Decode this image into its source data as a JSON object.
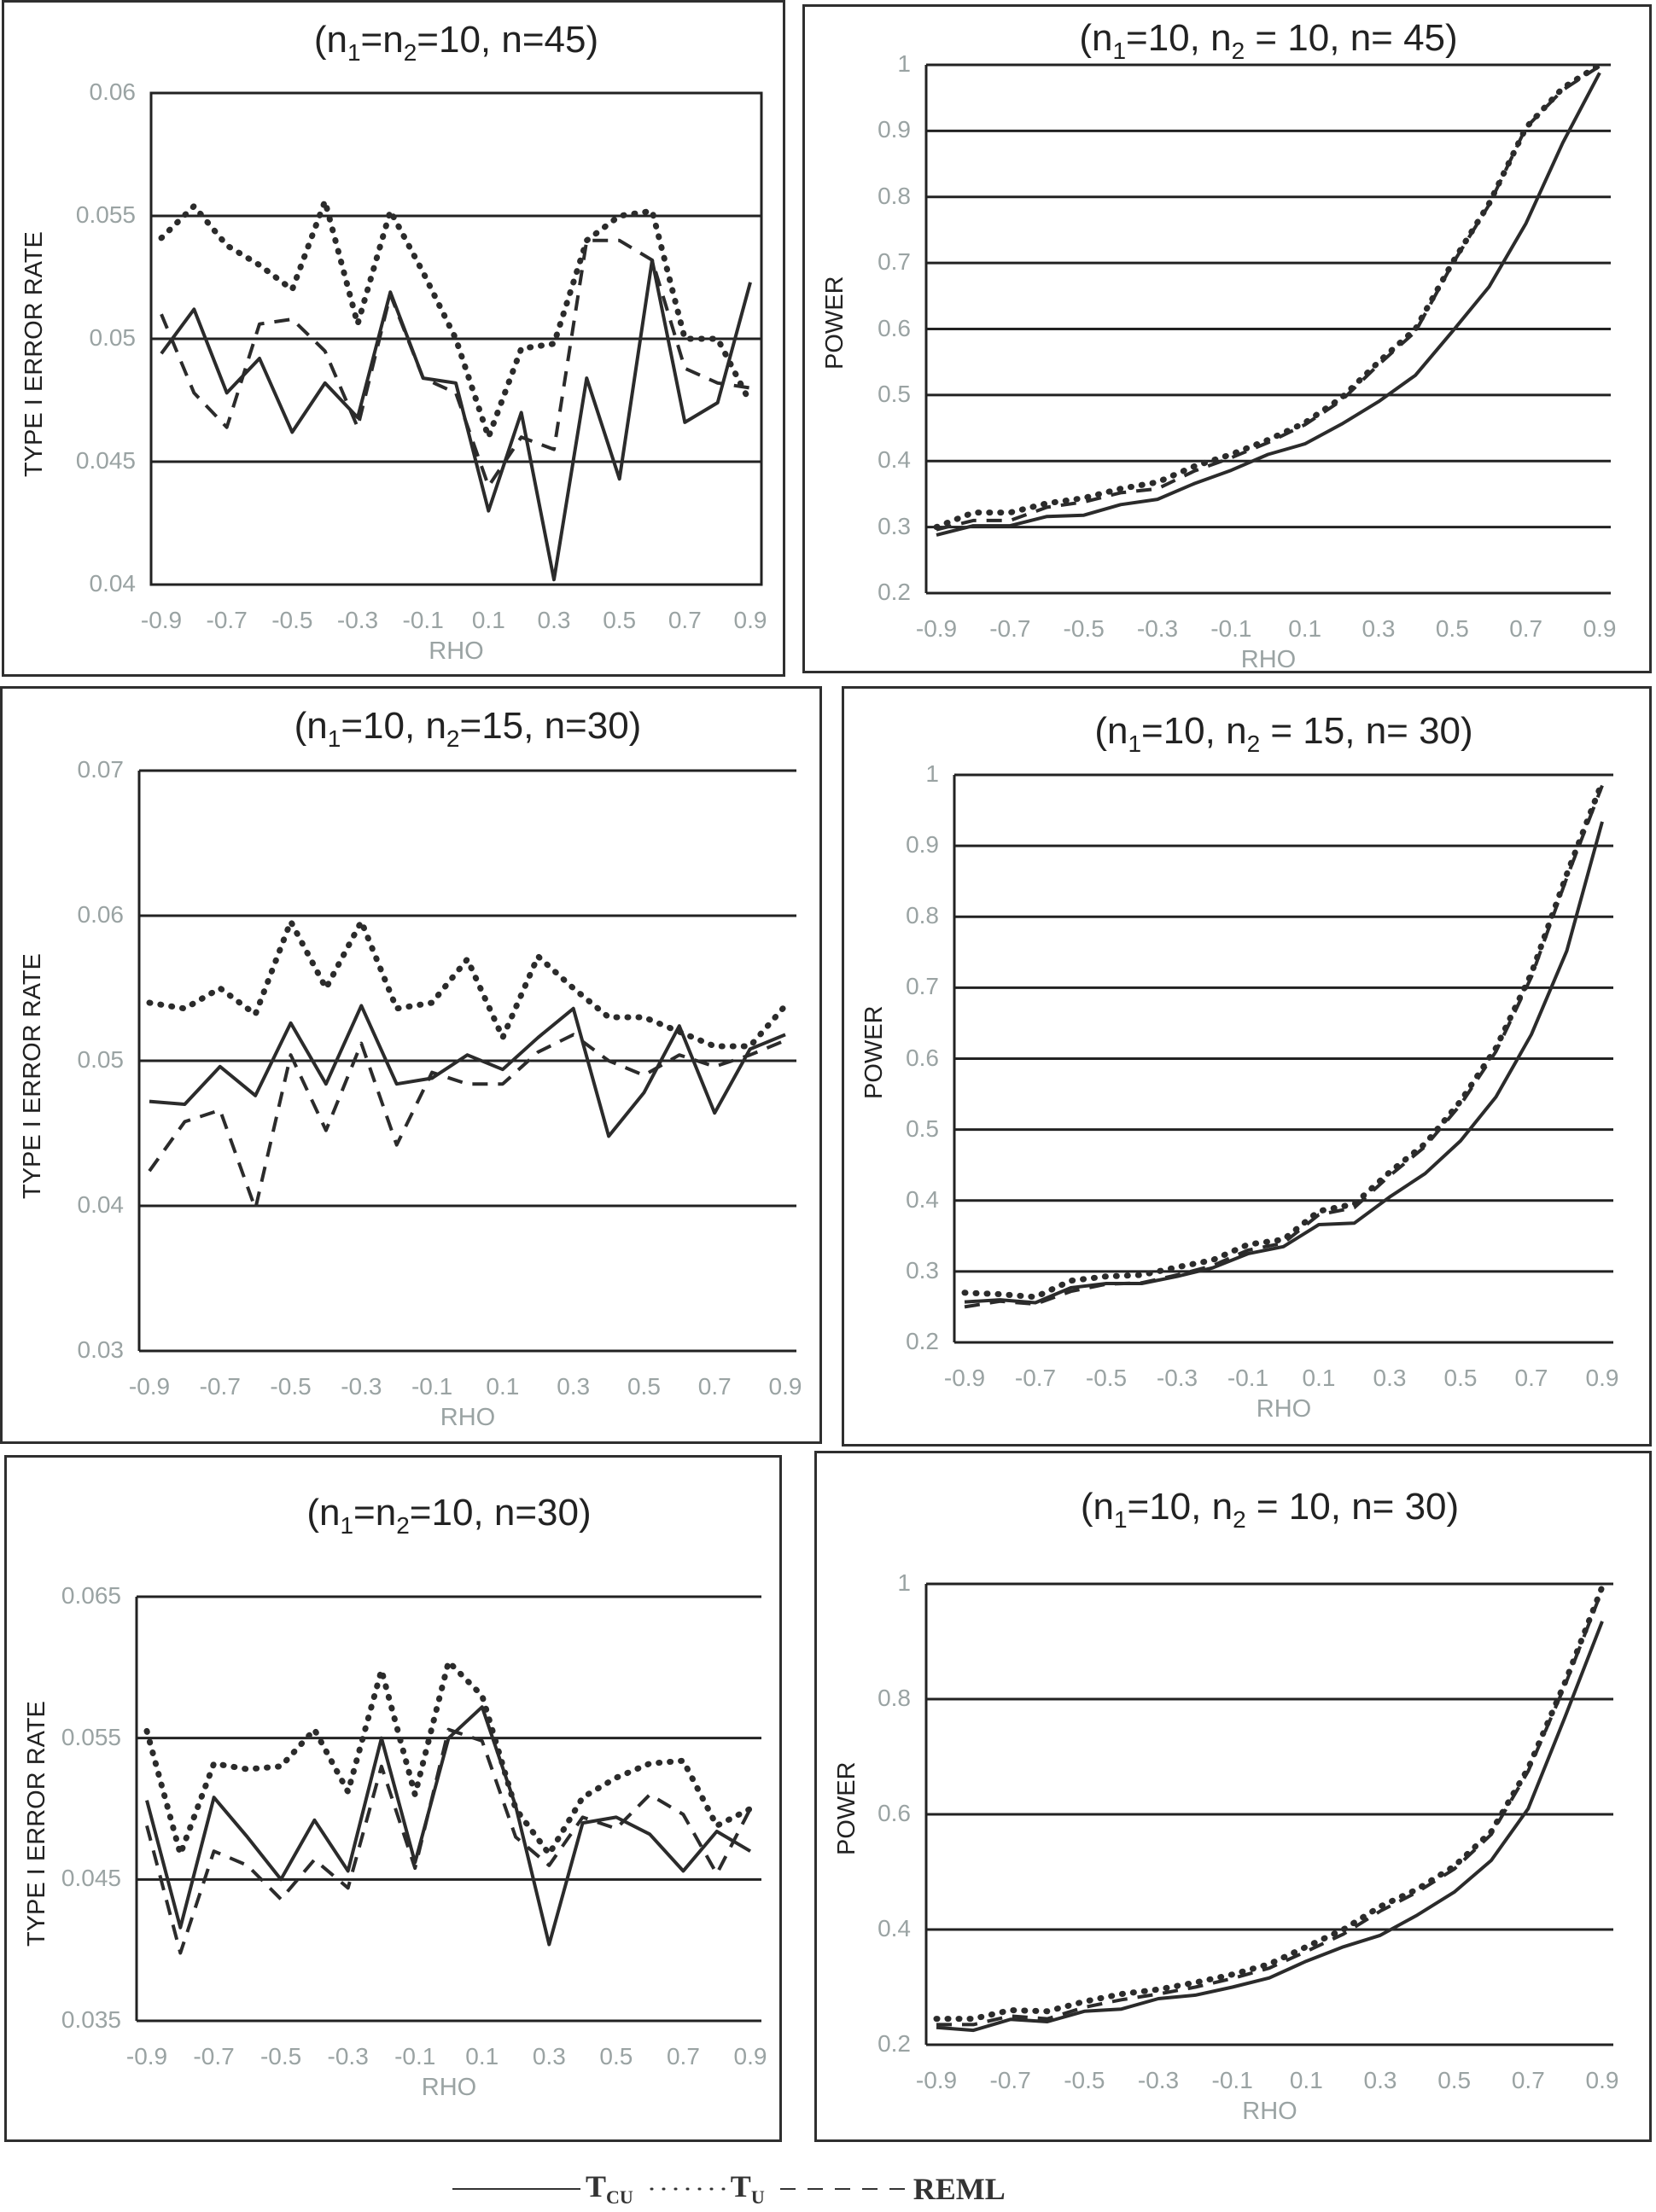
{
  "chart_data": [
    {
      "type": "line",
      "title": "(n1=n2=10, n=45)",
      "xlabel": "RHO",
      "ylabel": "TYPE I ERROR RATE",
      "x": [
        -0.9,
        -0.8,
        -0.7,
        -0.6,
        -0.5,
        -0.4,
        -0.3,
        -0.2,
        -0.1,
        0,
        0.1,
        0.2,
        0.3,
        0.4,
        0.5,
        0.6,
        0.7,
        0.8,
        0.9
      ],
      "xticks": [
        "-0.9",
        "-0.7",
        "-0.5",
        "-0.3",
        "-0.1",
        "0.1",
        "0.3",
        "0.5",
        "0.7",
        "0.9"
      ],
      "yticks": [
        "0.04",
        "0.045",
        "0.05",
        "0.055",
        "0.06"
      ],
      "ylim": [
        0.04,
        0.06
      ],
      "grid": true,
      "series": [
        {
          "name": "T_CU",
          "style": "solid",
          "values": [
            0.0494,
            0.0512,
            0.0478,
            0.0492,
            0.0462,
            0.0482,
            0.0468,
            0.0519,
            0.0484,
            0.0482,
            0.043,
            0.047,
            0.0402,
            0.0484,
            0.0443,
            0.0532,
            0.0466,
            0.0474,
            0.0523
          ]
        },
        {
          "name": "T_U",
          "style": "dotted",
          "values": [
            0.0541,
            0.0554,
            0.0538,
            0.053,
            0.052,
            0.0556,
            0.0506,
            0.0552,
            0.0527,
            0.05,
            0.046,
            0.0496,
            0.0498,
            0.054,
            0.055,
            0.0552,
            0.05,
            0.05,
            0.0474
          ]
        },
        {
          "name": "REML",
          "style": "dashed",
          "values": [
            0.051,
            0.0478,
            0.0464,
            0.0506,
            0.0508,
            0.0495,
            0.0464,
            0.0518,
            0.0484,
            0.0478,
            0.044,
            0.046,
            0.0455,
            0.054,
            0.054,
            0.0532,
            0.0488,
            0.0482,
            0.048
          ]
        }
      ]
    },
    {
      "type": "line",
      "title": "(n1=10, n2 = 10, n= 45)",
      "xlabel": "RHO",
      "ylabel": "POWER",
      "x": [
        -0.9,
        -0.8,
        -0.7,
        -0.6,
        -0.5,
        -0.4,
        -0.3,
        -0.2,
        -0.1,
        0,
        0.1,
        0.2,
        0.3,
        0.4,
        0.5,
        0.6,
        0.7,
        0.8,
        0.9
      ],
      "xticks": [
        "-0.9",
        "-0.7",
        "-0.5",
        "-0.3",
        "-0.1",
        "0.1",
        "0.3",
        "0.5",
        "0.7",
        "0.9"
      ],
      "yticks": [
        "0.2",
        "0.3",
        "0.4",
        "0.5",
        "0.6",
        "0.7",
        "0.8",
        "0.9",
        "1"
      ],
      "ylim": [
        0.2,
        1
      ],
      "grid": true,
      "series": [
        {
          "name": "T_CU",
          "style": "solid",
          "values": [
            0.288,
            0.302,
            0.302,
            0.316,
            0.318,
            0.334,
            0.342,
            0.366,
            0.386,
            0.41,
            0.426,
            0.456,
            0.49,
            0.53,
            0.596,
            0.664,
            0.76,
            0.882,
            0.988
          ]
        },
        {
          "name": "T_U",
          "style": "dotted",
          "values": [
            0.3,
            0.322,
            0.322,
            0.336,
            0.344,
            0.358,
            0.368,
            0.392,
            0.41,
            0.432,
            0.458,
            0.496,
            0.55,
            0.6,
            0.7,
            0.79,
            0.905,
            0.965,
            1.0
          ]
        },
        {
          "name": "REML",
          "style": "dashed",
          "values": [
            0.296,
            0.31,
            0.31,
            0.33,
            0.338,
            0.352,
            0.358,
            0.385,
            0.405,
            0.428,
            0.455,
            0.492,
            0.546,
            0.596,
            0.698,
            0.788,
            0.905,
            0.962,
            0.998
          ]
        }
      ]
    },
    {
      "type": "line",
      "title": "(n1=10, n2=15, n=30)",
      "xlabel": "RHO",
      "ylabel": "TYPE I ERROR RATE",
      "x": [
        -0.9,
        -0.8,
        -0.7,
        -0.6,
        -0.5,
        -0.4,
        -0.3,
        -0.2,
        -0.1,
        0,
        0.1,
        0.2,
        0.3,
        0.4,
        0.5,
        0.6,
        0.7,
        0.8,
        0.9
      ],
      "xticks": [
        "-0.9",
        "-0.7",
        "-0.5",
        "-0.3",
        "-0.1",
        "0.1",
        "0.3",
        "0.5",
        "0.7",
        "0.9"
      ],
      "yticks": [
        "0.03",
        "0.04",
        "0.05",
        "0.06",
        "0.07"
      ],
      "ylim": [
        0.03,
        0.07
      ],
      "grid": true,
      "series": [
        {
          "name": "T_CU",
          "style": "solid",
          "values": [
            0.0472,
            0.047,
            0.0496,
            0.0476,
            0.0526,
            0.0484,
            0.0538,
            0.0484,
            0.0488,
            0.0504,
            0.0494,
            0.0516,
            0.0536,
            0.0448,
            0.0478,
            0.0524,
            0.0464,
            0.0508,
            0.0518
          ]
        },
        {
          "name": "T_U",
          "style": "dotted",
          "values": [
            0.054,
            0.0536,
            0.055,
            0.0532,
            0.0596,
            0.055,
            0.0596,
            0.0536,
            0.054,
            0.057,
            0.0516,
            0.0572,
            0.055,
            0.053,
            0.053,
            0.052,
            0.051,
            0.051,
            0.0538
          ]
        },
        {
          "name": "REML",
          "style": "dashed",
          "values": [
            0.0424,
            0.0458,
            0.0466,
            0.0398,
            0.0504,
            0.0452,
            0.0512,
            0.0442,
            0.0492,
            0.0484,
            0.0484,
            0.0506,
            0.0518,
            0.05,
            0.049,
            0.0504,
            0.0496,
            0.0504,
            0.0514
          ]
        }
      ]
    },
    {
      "type": "line",
      "title": "(n1=10, n2 = 15, n= 30)",
      "xlabel": "RHO",
      "ylabel": "POWER",
      "x": [
        -0.9,
        -0.8,
        -0.7,
        -0.6,
        -0.5,
        -0.4,
        -0.3,
        -0.2,
        -0.1,
        0,
        0.1,
        0.2,
        0.3,
        0.4,
        0.5,
        0.6,
        0.7,
        0.8,
        0.9
      ],
      "xticks": [
        "-0.9",
        "-0.7",
        "-0.5",
        "-0.3",
        "-0.1",
        "0.1",
        "0.3",
        "0.5",
        "0.7",
        "0.9"
      ],
      "yticks": [
        "0.2",
        "0.3",
        "0.4",
        "0.5",
        "0.6",
        "0.7",
        "0.8",
        "0.9",
        "1"
      ],
      "ylim": [
        0.2,
        1
      ],
      "grid": true,
      "series": [
        {
          "name": "T_CU",
          "style": "solid",
          "values": [
            0.257,
            0.26,
            0.256,
            0.277,
            0.283,
            0.283,
            0.293,
            0.305,
            0.325,
            0.335,
            0.366,
            0.368,
            0.405,
            0.438,
            0.484,
            0.546,
            0.634,
            0.752,
            0.934
          ]
        },
        {
          "name": "T_U",
          "style": "dotted",
          "values": [
            0.27,
            0.268,
            0.264,
            0.287,
            0.293,
            0.295,
            0.306,
            0.316,
            0.338,
            0.345,
            0.385,
            0.395,
            0.44,
            0.48,
            0.54,
            0.615,
            0.72,
            0.86,
            0.99
          ]
        },
        {
          "name": "REML",
          "style": "dashed",
          "values": [
            0.25,
            0.258,
            0.254,
            0.272,
            0.282,
            0.284,
            0.295,
            0.308,
            0.33,
            0.34,
            0.38,
            0.39,
            0.435,
            0.476,
            0.535,
            0.61,
            0.715,
            0.855,
            0.985
          ]
        }
      ]
    },
    {
      "type": "line",
      "title": "(n1=n2=10, n=30)",
      "xlabel": "RHO",
      "ylabel": "TYPE I ERROR RATE",
      "x": [
        -0.9,
        -0.8,
        -0.7,
        -0.6,
        -0.5,
        -0.4,
        -0.3,
        -0.2,
        -0.1,
        0,
        0.1,
        0.2,
        0.3,
        0.4,
        0.5,
        0.6,
        0.7,
        0.8,
        0.9
      ],
      "xticks": [
        "-0.9",
        "-0.7",
        "-0.5",
        "-0.3",
        "-0.1",
        "0.1",
        "0.3",
        "0.5",
        "0.7",
        "0.9"
      ],
      "yticks": [
        "0.035",
        "0.045",
        "0.055",
        "0.065"
      ],
      "ylim": [
        0.035,
        0.065
      ],
      "grid": true,
      "series": [
        {
          "name": "T_CU",
          "style": "solid",
          "values": [
            0.0506,
            0.0416,
            0.0508,
            0.048,
            0.045,
            0.0492,
            0.0456,
            0.055,
            0.0462,
            0.055,
            0.0572,
            0.0502,
            0.0404,
            0.049,
            0.0494,
            0.0482,
            0.0456,
            0.0484,
            0.047
          ]
        },
        {
          "name": "T_U",
          "style": "dotted",
          "values": [
            0.0555,
            0.0468,
            0.0532,
            0.0528,
            0.053,
            0.0556,
            0.0512,
            0.0598,
            0.051,
            0.0604,
            0.058,
            0.05,
            0.0468,
            0.0508,
            0.0522,
            0.0532,
            0.0534,
            0.0488,
            0.05
          ]
        },
        {
          "name": "REML",
          "style": "dashed",
          "values": [
            0.0488,
            0.0398,
            0.047,
            0.046,
            0.0436,
            0.0464,
            0.0444,
            0.053,
            0.0458,
            0.0556,
            0.0548,
            0.048,
            0.046,
            0.0494,
            0.0486,
            0.051,
            0.0496,
            0.0454,
            0.05
          ]
        }
      ]
    },
    {
      "type": "line",
      "title": "(n1=10, n2 = 10, n= 30)",
      "xlabel": "RHO",
      "ylabel": "POWER",
      "x": [
        -0.9,
        -0.8,
        -0.7,
        -0.6,
        -0.5,
        -0.4,
        -0.3,
        -0.2,
        -0.1,
        0,
        0.1,
        0.2,
        0.3,
        0.4,
        0.5,
        0.6,
        0.7,
        0.8,
        0.9
      ],
      "xticks": [
        "-0.9",
        "-0.7",
        "-0.5",
        "-0.3",
        "-0.1",
        "0.1",
        "0.3",
        "0.5",
        "0.7",
        "0.9"
      ],
      "yticks": [
        "0.2",
        "0.4",
        "0.6",
        "0.8",
        "1"
      ],
      "ylim": [
        0.2,
        1
      ],
      "grid": true,
      "series": [
        {
          "name": "T_CU",
          "style": "solid",
          "values": [
            0.23,
            0.225,
            0.244,
            0.24,
            0.258,
            0.262,
            0.28,
            0.286,
            0.3,
            0.316,
            0.345,
            0.37,
            0.39,
            0.425,
            0.465,
            0.52,
            0.61,
            0.77,
            0.935
          ]
        },
        {
          "name": "T_U",
          "style": "dotted",
          "values": [
            0.245,
            0.245,
            0.26,
            0.258,
            0.275,
            0.288,
            0.296,
            0.308,
            0.322,
            0.34,
            0.37,
            0.4,
            0.44,
            0.47,
            0.51,
            0.57,
            0.68,
            0.83,
            0.995
          ]
        },
        {
          "name": "REML",
          "style": "dashed",
          "values": [
            0.235,
            0.235,
            0.25,
            0.245,
            0.265,
            0.278,
            0.288,
            0.3,
            0.315,
            0.333,
            0.362,
            0.392,
            0.432,
            0.465,
            0.505,
            0.565,
            0.675,
            0.825,
            0.99
          ]
        }
      ]
    }
  ],
  "legend": {
    "position": "bottom",
    "items": [
      {
        "main": "T",
        "sub": "CU",
        "style": "solid"
      },
      {
        "main": "T",
        "sub": "U",
        "style": "dotted"
      },
      {
        "main": "REML",
        "sub": "",
        "style": "dashed"
      }
    ]
  },
  "line_color": "#2b2b2b",
  "tick_color": "#9aa3a3"
}
